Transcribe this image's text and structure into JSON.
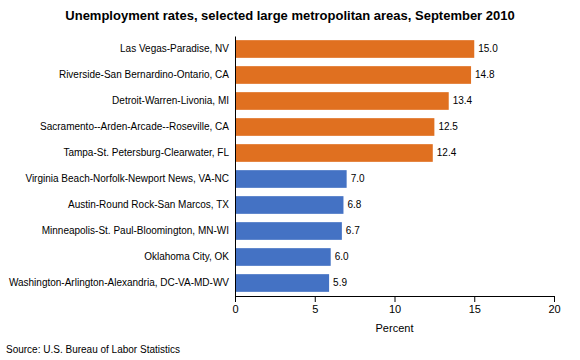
{
  "chart_data": {
    "type": "bar",
    "orientation": "horizontal",
    "title": "Unemployment rates, selected large metropolitan areas, September 2010",
    "categories": [
      "Washington-Arlington-Alexandria, DC-VA-MD-WV",
      "Oklahoma City, OK",
      "Minneapolis-St. Paul-Bloomington, MN-WI",
      "Austin-Round Rock-San Marcos, TX",
      "Virginia Beach-Norfolk-Newport News, VA-NC",
      "Tampa-St. Petersburg-Clearwater, FL",
      "Sacramento--Arden-Arcade--Roseville, CA",
      "Detroit-Warren-Livonia, MI",
      "Riverside-San Bernardino-Ontario, CA",
      "Las Vegas-Paradise, NV"
    ],
    "values": [
      5.9,
      6.0,
      6.7,
      6.8,
      7.0,
      12.4,
      12.5,
      13.4,
      14.8,
      15.0
    ],
    "value_labels": [
      "5.9",
      "6.0",
      "6.7",
      "6.8",
      "7.0",
      "12.4",
      "12.5",
      "13.4",
      "14.8",
      "15.0"
    ],
    "colors": [
      "#4472C4",
      "#4472C4",
      "#4472C4",
      "#4472C4",
      "#4472C4",
      "#E07020",
      "#E07020",
      "#E07020",
      "#E07020",
      "#E07020"
    ],
    "xlabel": "Percent",
    "xlim": [
      0,
      20
    ],
    "xticks": [
      0,
      5,
      10,
      15,
      20
    ],
    "data_labels": true,
    "grid": false,
    "source": "Source: U.S. Bureau of Labor Statistics"
  }
}
